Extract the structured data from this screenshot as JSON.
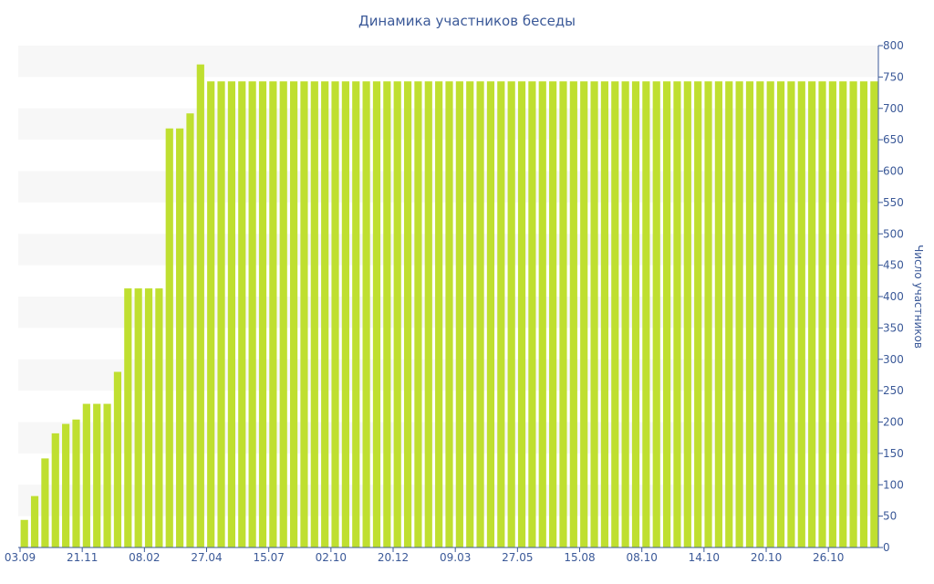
{
  "chart_data": {
    "type": "bar",
    "title": "Динамика участников беседы",
    "xlabel": "",
    "ylabel": "Число участников",
    "ylim": [
      0,
      800
    ],
    "yticks": [
      0,
      50,
      100,
      150,
      200,
      250,
      300,
      350,
      400,
      450,
      500,
      550,
      600,
      650,
      700,
      750,
      800
    ],
    "x_tick_labels": [
      {
        "label": "03.09",
        "index": 0
      },
      {
        "label": "21.11",
        "index": 6
      },
      {
        "label": "08.02",
        "index": 12
      },
      {
        "label": "27.04",
        "index": 18
      },
      {
        "label": "15.07",
        "index": 24
      },
      {
        "label": "02.10",
        "index": 30
      },
      {
        "label": "20.12",
        "index": 36
      },
      {
        "label": "09.03",
        "index": 42
      },
      {
        "label": "27.05",
        "index": 48
      },
      {
        "label": "15.08",
        "index": 54
      },
      {
        "label": "08.10",
        "index": 60
      },
      {
        "label": "14.10",
        "index": 66
      },
      {
        "label": "20.10",
        "index": 72
      },
      {
        "label": "26.10",
        "index": 78
      }
    ],
    "values": [
      44,
      82,
      142,
      182,
      197,
      204,
      229,
      229,
      229,
      280,
      413,
      413,
      413,
      413,
      668,
      668,
      692,
      770,
      743,
      743,
      743,
      743,
      743,
      743,
      743,
      743,
      743,
      743,
      743,
      743,
      743,
      743,
      743,
      743,
      743,
      743,
      743,
      743,
      743,
      743,
      743,
      743,
      743,
      743,
      743,
      743,
      743,
      743,
      743,
      743,
      743,
      743,
      743,
      743,
      743,
      743,
      743,
      743,
      743,
      743,
      743,
      743,
      743,
      743,
      743,
      743,
      743,
      743,
      743,
      743,
      743,
      743,
      743,
      743,
      743,
      743,
      743,
      743,
      743,
      743,
      743,
      743,
      743
    ],
    "bar_color": "#bfdf30",
    "band_color": "#f7f7f7",
    "axis_color": "#3b5998",
    "grid": true
  }
}
